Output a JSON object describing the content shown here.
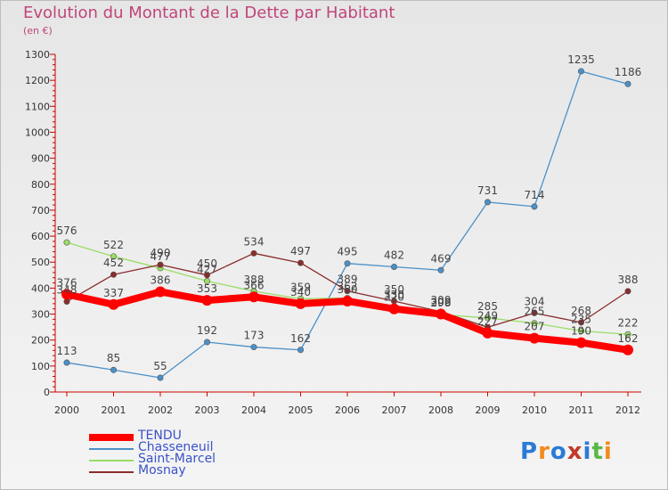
{
  "chart_data": {
    "type": "line",
    "title": "Evolution du Montant de la Dette par Habitant",
    "subtitle": "(en €)",
    "x": [
      "2000",
      "2001",
      "2002",
      "2003",
      "2004",
      "2005",
      "2006",
      "2007",
      "2008",
      "2009",
      "2010",
      "2011",
      "2012"
    ],
    "ylim": [
      0,
      1300
    ],
    "yticks": [
      0,
      100,
      200,
      300,
      400,
      500,
      600,
      700,
      800,
      900,
      1000,
      1100,
      1200,
      1300
    ],
    "grid": false,
    "legend_position": "bottom-left",
    "series": [
      {
        "name": "TENDU",
        "color": "#ff0000",
        "values": [
          376,
          337,
          386,
          353,
          366,
          340,
          350,
          320,
          300,
          227,
          207,
          190,
          162
        ]
      },
      {
        "name": "Chasseneuil",
        "color": "#4a90c8",
        "values": [
          113,
          85,
          55,
          192,
          173,
          162,
          495,
          482,
          469,
          731,
          714,
          1235,
          1186
        ]
      },
      {
        "name": "Saint-Marcel",
        "color": "#99dd66",
        "values": [
          576,
          522,
          477,
          427,
          388,
          359,
          362,
          330,
          298,
          285,
          265,
          235,
          222
        ]
      },
      {
        "name": "Mosnay",
        "color": "#8b2c2c",
        "values": [
          348,
          452,
          490,
          450,
          534,
          497,
          389,
          350,
          309,
          249,
          304,
          268,
          388
        ]
      }
    ]
  },
  "logo": {
    "text": "Proxiti",
    "colors": [
      "#2b7bd6",
      "#f28a1e",
      "#2b7bd6",
      "#c0392b",
      "#2b7bd6",
      "#59b848",
      "#f28a1e"
    ]
  }
}
